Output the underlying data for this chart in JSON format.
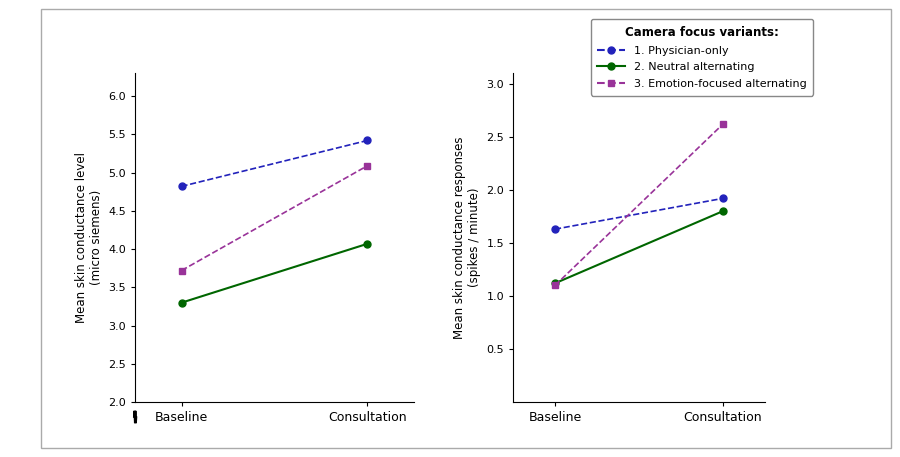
{
  "left_plot": {
    "ylabel": "Mean skin conductance level\n(micro siemens)",
    "xlabel_ticks": [
      "Baseline",
      "Consultation"
    ],
    "ylim": [
      2.0,
      6.3
    ],
    "yticks": [
      2.0,
      2.5,
      3.0,
      3.5,
      4.0,
      4.5,
      5.0,
      5.5,
      6.0
    ],
    "series": [
      {
        "label": "1. Physician-only",
        "color": "#2222bb",
        "linestyle": "dashed",
        "marker": "o",
        "markersize": 5,
        "linewidth": 1.2,
        "values": [
          4.82,
          5.42
        ]
      },
      {
        "label": "2. Neutral alternating",
        "color": "#006600",
        "linestyle": "solid",
        "marker": "o",
        "markersize": 5,
        "linewidth": 1.5,
        "values": [
          3.3,
          4.07
        ]
      },
      {
        "label": "3. Emotion-focused alternating",
        "color": "#993399",
        "linestyle": "dashed",
        "marker": "s",
        "markersize": 5,
        "linewidth": 1.2,
        "values": [
          3.72,
          5.09
        ]
      }
    ]
  },
  "right_plot": {
    "ylabel": "Mean skin conductance responses\n(spikes / minute)",
    "xlabel_ticks": [
      "Baseline",
      "Consultation"
    ],
    "ylim": [
      0.0,
      3.1
    ],
    "yticks": [
      0.5,
      1.0,
      1.5,
      2.0,
      2.5,
      3.0
    ],
    "series": [
      {
        "label": "1. Physician-only",
        "color": "#2222bb",
        "linestyle": "dashed",
        "marker": "o",
        "markersize": 5,
        "linewidth": 1.2,
        "values": [
          1.63,
          1.92
        ]
      },
      {
        "label": "2. Neutral alternating",
        "color": "#006600",
        "linestyle": "solid",
        "marker": "o",
        "markersize": 5,
        "linewidth": 1.5,
        "values": [
          1.12,
          1.8
        ]
      },
      {
        "label": "3. Emotion-focused alternating",
        "color": "#993399",
        "linestyle": "dashed",
        "marker": "s",
        "markersize": 5,
        "linewidth": 1.2,
        "values": [
          1.1,
          2.62
        ]
      }
    ]
  },
  "legend": {
    "title": "Camera focus variants:",
    "entries": [
      {
        "label": "1. Physician-only",
        "color": "#2222bb",
        "linestyle": "dashed",
        "marker": "o"
      },
      {
        "label": "2. Neutral alternating",
        "color": "#006600",
        "linestyle": "solid",
        "marker": "o"
      },
      {
        "label": "3. Emotion-focused alternating",
        "color": "#993399",
        "linestyle": "dashed",
        "marker": "s"
      }
    ]
  },
  "fig_background": "#ffffff",
  "plot_background": "#ffffff"
}
